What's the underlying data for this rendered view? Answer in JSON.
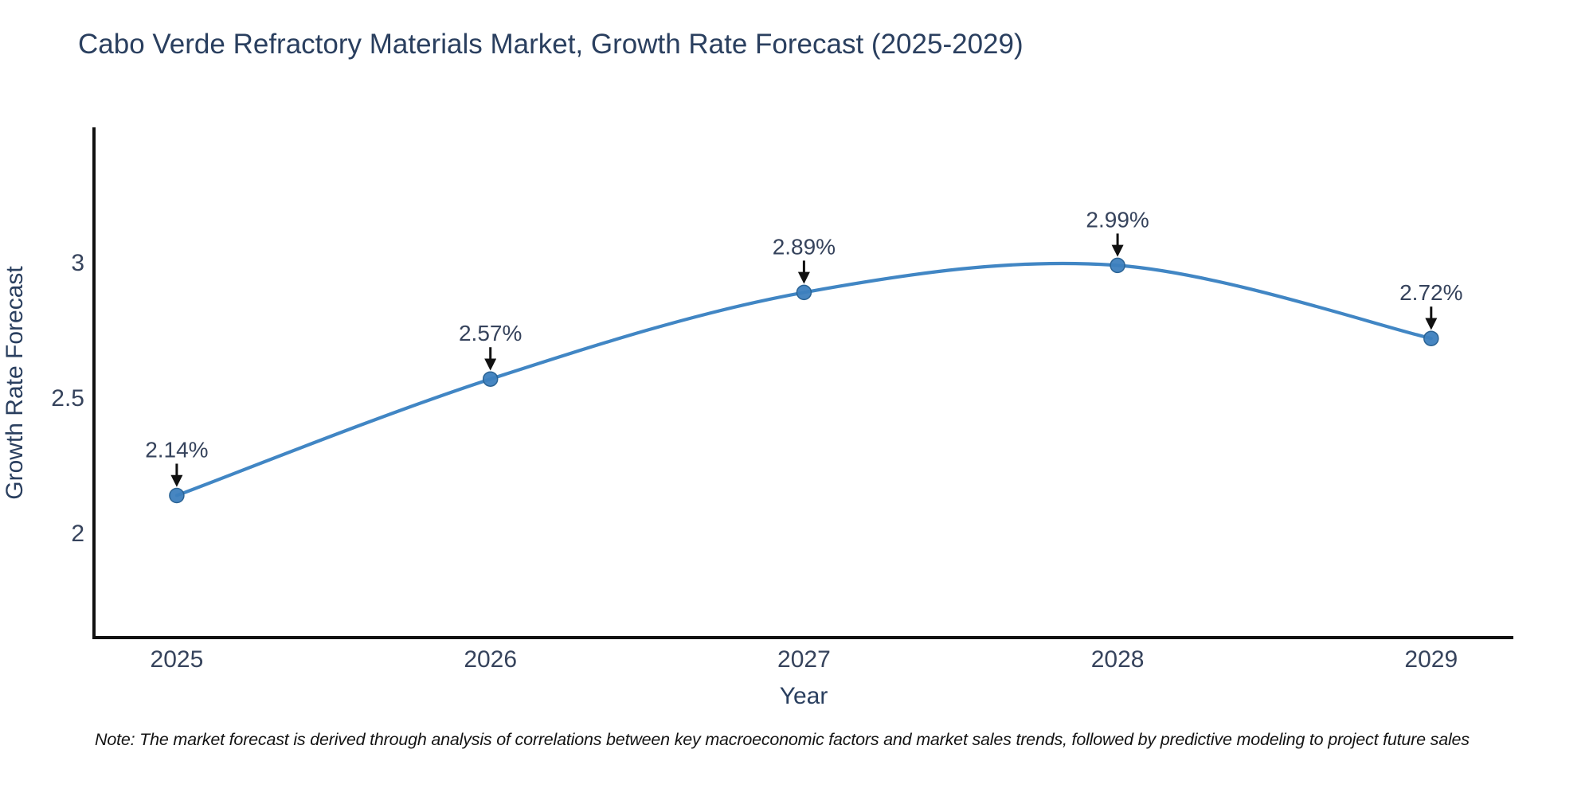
{
  "chart": {
    "title": "Cabo Verde Refractory Materials Market, Growth Rate Forecast (2025-2029)",
    "note": "Note: The market forecast is derived through analysis of correlations between key macroeconomic factors and market sales trends, followed by predictive modeling to project future sales"
  },
  "chart_data": {
    "type": "line",
    "title": "Cabo Verde Refractory Materials Market, Growth Rate Forecast (2025-2029)",
    "line_shape": "spline",
    "grid": false,
    "legend": false,
    "x": [
      2025,
      2026,
      2027,
      2028,
      2029
    ],
    "y": [
      2.14,
      2.57,
      2.89,
      2.99,
      2.72
    ],
    "labels": [
      "2.14%",
      "2.57%",
      "2.89%",
      "2.99%",
      "2.72%"
    ],
    "xlabel": "Year",
    "ylabel": "Growth Rate Forecast",
    "x_ticks": [
      2025,
      2026,
      2027,
      2028,
      2029
    ],
    "x_tick_labels": [
      "2025",
      "2026",
      "2027",
      "2028",
      "2029"
    ],
    "y_ticks": [
      2,
      2.5,
      3
    ],
    "y_tick_labels": [
      "2",
      "2.5",
      "3"
    ],
    "xlim": [
      2024.736,
      2029.262
    ],
    "ylim": [
      1.615,
      3.5
    ],
    "colors": {
      "line": "#4186c4",
      "marker": "#3d7fbe",
      "marker_edge": "#2b6394",
      "arrow": "#111111",
      "axis": "#111111",
      "tick_text": "#36435c",
      "title": "#2a3f5f",
      "note": "#141414",
      "background": "#ffffff"
    }
  }
}
